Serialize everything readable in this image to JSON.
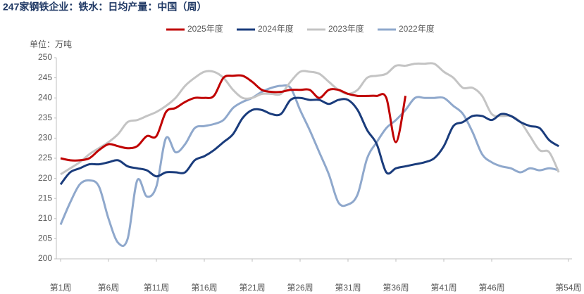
{
  "chart_data": {
    "type": "line",
    "title": "247家钢铁企业：铁水：日均产量：中国（周）",
    "y_label": "单位：万吨",
    "categories": [
      "第1周",
      null,
      null,
      null,
      null,
      "第6周",
      null,
      null,
      null,
      null,
      "第11周",
      null,
      null,
      null,
      null,
      "第16周",
      null,
      null,
      null,
      null,
      "第21周",
      null,
      null,
      null,
      null,
      "第26周",
      null,
      null,
      null,
      null,
      "第31周",
      null,
      null,
      null,
      null,
      "第36周",
      null,
      null,
      null,
      null,
      "第41周",
      null,
      null,
      null,
      null,
      "第46周",
      null,
      null,
      null,
      null,
      null,
      null,
      null,
      "第54周"
    ],
    "ylim": [
      200,
      250
    ],
    "yticks": [
      200,
      205,
      210,
      215,
      220,
      225,
      230,
      235,
      240,
      245,
      250
    ],
    "legend": "top",
    "series": [
      {
        "name": "2025年度",
        "color": "#c00000",
        "values": [
          225,
          224.5,
          224.5,
          225,
          227,
          228.5,
          228,
          227.5,
          228,
          230.5,
          230.5,
          236.5,
          237.5,
          239,
          240,
          240,
          240.5,
          245,
          245.5,
          245.5,
          244,
          242,
          241.5,
          241.5,
          242,
          242,
          242,
          240,
          242,
          242,
          241,
          240.5,
          240.5,
          240.5,
          240,
          229,
          240.5,
          null,
          null,
          null,
          null,
          null,
          null,
          null,
          null,
          null,
          null,
          null,
          null,
          null,
          null,
          null,
          null,
          null
        ]
      },
      {
        "name": "2024年度",
        "color": "#1a3c7c",
        "values": [
          218.5,
          221.5,
          222.5,
          223.5,
          223.5,
          224,
          224.5,
          223,
          222.5,
          222,
          220.5,
          221.5,
          221.5,
          221.5,
          224.5,
          225.5,
          227,
          229,
          231,
          235,
          237,
          237,
          236,
          236,
          239.5,
          240,
          239.5,
          239.5,
          238.5,
          239.5,
          239.5,
          237,
          232,
          228.5,
          221.5,
          222.5,
          223,
          223.5,
          224,
          225,
          228,
          233,
          234,
          235.5,
          235.5,
          234.5,
          236,
          235.5,
          234,
          233,
          232.5,
          229.5,
          228,
          null
        ]
      },
      {
        "name": "2023年度",
        "color": "#c4c4c4",
        "values": [
          221,
          222.5,
          224,
          226,
          227.5,
          229,
          231,
          234,
          234.5,
          235.5,
          236.5,
          238,
          240,
          243,
          245,
          246.5,
          246.5,
          245,
          242,
          240,
          240,
          241,
          241,
          241,
          244,
          246.5,
          246.5,
          246,
          244,
          242,
          241,
          242,
          245,
          245.5,
          246,
          248,
          248,
          248.5,
          248.5,
          248.5,
          246.5,
          245,
          242.5,
          242.5,
          240.5,
          236,
          235.5,
          235.5,
          234,
          230.5,
          227,
          226.5,
          221.5,
          null
        ]
      },
      {
        "name": "2022年度",
        "color": "#8fa8cc",
        "values": [
          208.5,
          214,
          218.5,
          219.5,
          218,
          210,
          204,
          205,
          219.5,
          215.5,
          218,
          230,
          226.5,
          228.5,
          232.5,
          233,
          233.5,
          234.5,
          237.5,
          239,
          240,
          241.5,
          242.5,
          243,
          242.5,
          237,
          232,
          226.5,
          221,
          214,
          213.5,
          216,
          225,
          229,
          232.5,
          234.5,
          237,
          240,
          240,
          240,
          240,
          238,
          236,
          231.5,
          226,
          224,
          223,
          222.5,
          221.5,
          222.5,
          222,
          222.5,
          222,
          null
        ]
      }
    ]
  }
}
